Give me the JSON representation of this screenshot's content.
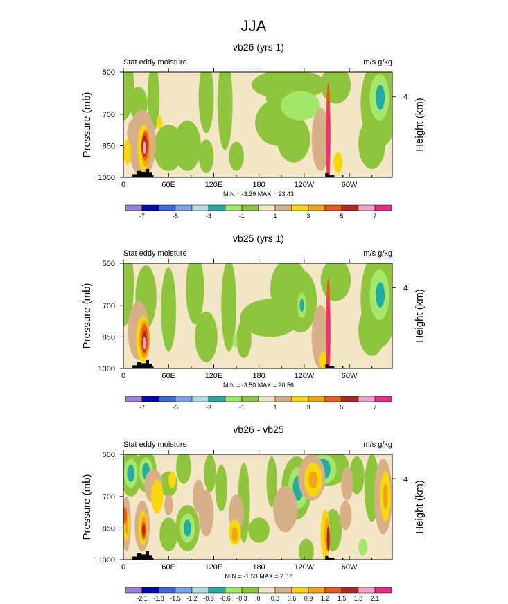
{
  "figure": {
    "title": "JJA"
  },
  "palettes": {
    "full": [
      "#9b7fd6",
      "#0606b4",
      "#3a66de",
      "#7aa4ee",
      "#b2dde2",
      "#23aca6",
      "#a3e86a",
      "#8fc53d",
      "#f3e6c6",
      "#d8b088",
      "#f6d80a",
      "#f3a417",
      "#ec5a17",
      "#b42626",
      "#f3a3c3",
      "#ec2a8c"
    ]
  },
  "chart_data": [
    {
      "type": "heatmap",
      "title": "vb26 (yrs 1)",
      "left_label": "Stat eddy moisture",
      "right_label": "m/s g/kg",
      "ylabel": "Pressure (mb)",
      "right_ylabel": "Height (km)",
      "x_ticks": [
        "0",
        "60E",
        "120E",
        "180",
        "120W",
        "60W"
      ],
      "x_tick_values": [
        0,
        60,
        120,
        180,
        240,
        300
      ],
      "x_range": [
        0,
        357
      ],
      "y_ticks": [
        "500",
        "700",
        "850",
        "1000"
      ],
      "y_tick_values": [
        500,
        700,
        850,
        1000
      ],
      "y_range": [
        500,
        1000
      ],
      "right_ticks": [
        "4"
      ],
      "right_tick_pressure": [
        616
      ],
      "minmax_text": "MIN =  -3.39  MAX =  23.43",
      "colorbar_labels": [
        "-7",
        "-5",
        "-3",
        "-1",
        "1",
        "3",
        "5",
        "7"
      ],
      "colorbar_label_boundaries": [
        1,
        3,
        5,
        7,
        9,
        11,
        13,
        15
      ],
      "background_level": 8,
      "blobs": [
        {
          "lon": 0,
          "p": 560,
          "rlon": 14,
          "rp": 170,
          "level": 7
        },
        {
          "lon": 20,
          "p": 650,
          "rlon": 12,
          "rp": 80,
          "level": 7
        },
        {
          "lon": 40,
          "p": 620,
          "rlon": 8,
          "rp": 160,
          "level": 7
        },
        {
          "lon": 60,
          "p": 860,
          "rlon": 20,
          "rp": 110,
          "level": 7
        },
        {
          "lon": 85,
          "p": 850,
          "rlon": 18,
          "rp": 120,
          "level": 7
        },
        {
          "lon": 110,
          "p": 620,
          "rlon": 10,
          "rp": 170,
          "level": 7
        },
        {
          "lon": 110,
          "p": 900,
          "rlon": 10,
          "rp": 80,
          "level": 7
        },
        {
          "lon": 135,
          "p": 650,
          "rlon": 10,
          "rp": 220,
          "level": 7
        },
        {
          "lon": 150,
          "p": 900,
          "rlon": 10,
          "rp": 70,
          "level": 7
        },
        {
          "lon": 200,
          "p": 560,
          "rlon": 12,
          "rp": 140,
          "level": 7
        },
        {
          "lon": 220,
          "p": 560,
          "rlon": 50,
          "rp": 70,
          "level": 7
        },
        {
          "lon": 205,
          "p": 740,
          "rlon": 30,
          "rp": 110,
          "level": 7
        },
        {
          "lon": 226,
          "p": 820,
          "rlon": 22,
          "rp": 110,
          "level": 7
        },
        {
          "lon": 235,
          "p": 660,
          "rlon": 26,
          "rp": 70,
          "level": 6
        },
        {
          "lon": 282,
          "p": 560,
          "rlon": 20,
          "rp": 90,
          "level": 7
        },
        {
          "lon": 330,
          "p": 840,
          "rlon": 18,
          "rp": 120,
          "level": 7
        },
        {
          "lon": 340,
          "p": 650,
          "rlon": 25,
          "rp": 210,
          "level": 7
        },
        {
          "lon": 340,
          "p": 620,
          "rlon": 13,
          "rp": 110,
          "level": 6
        },
        {
          "lon": 341,
          "p": 620,
          "rlon": 6,
          "rp": 60,
          "level": 5
        },
        {
          "lon": 15,
          "p": 790,
          "rlon": 10,
          "rp": 70,
          "level": 9
        },
        {
          "lon": 25,
          "p": 840,
          "rlon": 18,
          "rp": 160,
          "level": 9
        },
        {
          "lon": 262,
          "p": 820,
          "rlon": 12,
          "rp": 150,
          "level": 9
        },
        {
          "lon": 5,
          "p": 880,
          "rlon": 5,
          "rp": 60,
          "level": 10
        },
        {
          "lon": 48,
          "p": 740,
          "rlon": 4,
          "rp": 30,
          "level": 10
        },
        {
          "lon": 285,
          "p": 930,
          "rlon": 6,
          "rp": 50,
          "level": 10
        },
        {
          "lon": 27,
          "p": 860,
          "rlon": 8,
          "rp": 110,
          "level": 10
        },
        {
          "lon": 30,
          "p": 860,
          "rlon": 6,
          "rp": 90,
          "level": 11
        },
        {
          "lon": 29,
          "p": 850,
          "rlon": 5,
          "rp": 70,
          "level": 12
        },
        {
          "lon": 28,
          "p": 850,
          "rlon": 4,
          "rp": 50,
          "level": 13
        },
        {
          "lon": 28,
          "p": 860,
          "rlon": 2,
          "rp": 30,
          "level": 14
        },
        {
          "lon": 272,
          "p": 800,
          "rlon": 3,
          "rp": 250,
          "level": 12
        },
        {
          "lon": 272,
          "p": 830,
          "rlon": 2,
          "rp": 200,
          "level": 15
        }
      ]
    },
    {
      "type": "heatmap",
      "title": "vb25 (yrs 1)",
      "left_label": "Stat eddy moisture",
      "right_label": "m/s g/kg",
      "ylabel": "Pressure (mb)",
      "right_ylabel": "Height (km)",
      "x_ticks": [
        "0",
        "60E",
        "120E",
        "180",
        "120W",
        "60W"
      ],
      "x_tick_values": [
        0,
        60,
        120,
        180,
        240,
        300
      ],
      "x_range": [
        0,
        357
      ],
      "y_ticks": [
        "500",
        "700",
        "850",
        "1000"
      ],
      "y_tick_values": [
        500,
        700,
        850,
        1000
      ],
      "y_range": [
        500,
        1000
      ],
      "right_ticks": [
        "4"
      ],
      "right_tick_pressure": [
        616
      ],
      "minmax_text": "MIN =  -3.50  MAX =  20.56",
      "colorbar_labels": [
        "-7",
        "-5",
        "-3",
        "-1",
        "1",
        "3",
        "5",
        "7"
      ],
      "colorbar_label_boundaries": [
        1,
        3,
        5,
        7,
        9,
        11,
        13,
        15
      ],
      "background_level": 8,
      "blobs": [
        {
          "lon": 0,
          "p": 600,
          "rlon": 14,
          "rp": 200,
          "level": 7
        },
        {
          "lon": 30,
          "p": 660,
          "rlon": 14,
          "rp": 150,
          "level": 7
        },
        {
          "lon": 60,
          "p": 720,
          "rlon": 10,
          "rp": 200,
          "level": 7
        },
        {
          "lon": 95,
          "p": 620,
          "rlon": 12,
          "rp": 170,
          "level": 7
        },
        {
          "lon": 110,
          "p": 850,
          "rlon": 15,
          "rp": 120,
          "level": 7
        },
        {
          "lon": 140,
          "p": 700,
          "rlon": 10,
          "rp": 220,
          "level": 7
        },
        {
          "lon": 160,
          "p": 860,
          "rlon": 10,
          "rp": 90,
          "level": 7
        },
        {
          "lon": 220,
          "p": 620,
          "rlon": 25,
          "rp": 140,
          "level": 7
        },
        {
          "lon": 195,
          "p": 760,
          "rlon": 40,
          "rp": 90,
          "level": 7
        },
        {
          "lon": 235,
          "p": 680,
          "rlon": 22,
          "rp": 150,
          "level": 7
        },
        {
          "lon": 282,
          "p": 580,
          "rlon": 20,
          "rp": 100,
          "level": 7
        },
        {
          "lon": 330,
          "p": 820,
          "rlon": 18,
          "rp": 120,
          "level": 7
        },
        {
          "lon": 340,
          "p": 670,
          "rlon": 25,
          "rp": 230,
          "level": 7
        },
        {
          "lon": 237,
          "p": 700,
          "rlon": 6,
          "rp": 60,
          "level": 6
        },
        {
          "lon": 340,
          "p": 650,
          "rlon": 13,
          "rp": 120,
          "level": 6
        },
        {
          "lon": 341,
          "p": 650,
          "rlon": 6,
          "rp": 60,
          "level": 5
        },
        {
          "lon": 237,
          "p": 700,
          "rlon": 3,
          "rp": 30,
          "level": 5
        },
        {
          "lon": 148,
          "p": 870,
          "rlon": 3,
          "rp": 30,
          "level": 6
        },
        {
          "lon": 20,
          "p": 820,
          "rlon": 14,
          "rp": 140,
          "level": 9
        },
        {
          "lon": 262,
          "p": 850,
          "rlon": 12,
          "rp": 150,
          "level": 9
        },
        {
          "lon": 265,
          "p": 960,
          "rlon": 5,
          "rp": 40,
          "level": 10
        },
        {
          "lon": 26,
          "p": 860,
          "rlon": 9,
          "rp": 110,
          "level": 10
        },
        {
          "lon": 28,
          "p": 860,
          "rlon": 7,
          "rp": 90,
          "level": 11
        },
        {
          "lon": 28,
          "p": 860,
          "rlon": 5,
          "rp": 70,
          "level": 12
        },
        {
          "lon": 28,
          "p": 870,
          "rlon": 3,
          "rp": 50,
          "level": 13
        },
        {
          "lon": 28,
          "p": 880,
          "rlon": 2,
          "rp": 30,
          "level": 14
        },
        {
          "lon": 272,
          "p": 820,
          "rlon": 3,
          "rp": 250,
          "level": 12
        },
        {
          "lon": 272,
          "p": 850,
          "rlon": 2,
          "rp": 200,
          "level": 15
        }
      ]
    },
    {
      "type": "heatmap",
      "title": "vb26 - vb25",
      "left_label": "Stat eddy moisture",
      "right_label": "m/s g/kg",
      "ylabel": "Pressure (mb)",
      "right_ylabel": "Height (km)",
      "x_ticks": [
        "0",
        "60E",
        "120E",
        "180",
        "120W",
        "60W"
      ],
      "x_tick_values": [
        0,
        60,
        120,
        180,
        240,
        300
      ],
      "x_range": [
        0,
        357
      ],
      "y_ticks": [
        "500",
        "700",
        "850",
        "1000"
      ],
      "y_tick_values": [
        500,
        700,
        850,
        1000
      ],
      "y_range": [
        500,
        1000
      ],
      "right_ticks": [
        "4"
      ],
      "right_tick_pressure": [
        616
      ],
      "minmax_text": "MIN =  -1.53  MAX =  2.87",
      "colorbar_labels": [
        "-2.1",
        "-1.8",
        "-1.5",
        "-1.2",
        "-0.9",
        "-0.6",
        "-0.3",
        "0",
        "0.3",
        "0.6",
        "0.9",
        "1.2",
        "1.5",
        "1.8",
        "2.1"
      ],
      "colorbar_label_boundaries": [
        1,
        2,
        3,
        4,
        5,
        6,
        7,
        8,
        9,
        10,
        11,
        12,
        13,
        14,
        15
      ],
      "background_level": 8,
      "blobs": [
        {
          "lon": 10,
          "p": 590,
          "rlon": 14,
          "rp": 110,
          "level": 7
        },
        {
          "lon": 30,
          "p": 580,
          "rlon": 14,
          "rp": 100,
          "level": 7
        },
        {
          "lon": 10,
          "p": 590,
          "rlon": 9,
          "rp": 70,
          "level": 6
        },
        {
          "lon": 30,
          "p": 580,
          "rlon": 9,
          "rp": 65,
          "level": 6
        },
        {
          "lon": 10,
          "p": 590,
          "rlon": 5,
          "rp": 40,
          "level": 5
        },
        {
          "lon": 30,
          "p": 580,
          "rlon": 5,
          "rp": 40,
          "level": 5
        },
        {
          "lon": 60,
          "p": 640,
          "rlon": 12,
          "rp": 60,
          "level": 7
        },
        {
          "lon": 60,
          "p": 880,
          "rlon": 12,
          "rp": 80,
          "level": 7
        },
        {
          "lon": 80,
          "p": 560,
          "rlon": 10,
          "rp": 80,
          "level": 7
        },
        {
          "lon": 85,
          "p": 850,
          "rlon": 16,
          "rp": 110,
          "level": 7
        },
        {
          "lon": 85,
          "p": 850,
          "rlon": 10,
          "rp": 70,
          "level": 6
        },
        {
          "lon": 85,
          "p": 850,
          "rlon": 5,
          "rp": 40,
          "level": 5
        },
        {
          "lon": 115,
          "p": 590,
          "rlon": 8,
          "rp": 90,
          "level": 7
        },
        {
          "lon": 130,
          "p": 660,
          "rlon": 8,
          "rp": 110,
          "level": 7
        },
        {
          "lon": 160,
          "p": 730,
          "rlon": 8,
          "rp": 190,
          "level": 7
        },
        {
          "lon": 180,
          "p": 860,
          "rlon": 14,
          "rp": 60,
          "level": 7
        },
        {
          "lon": 197,
          "p": 630,
          "rlon": 7,
          "rp": 120,
          "level": 7
        },
        {
          "lon": 230,
          "p": 660,
          "rlon": 20,
          "rp": 150,
          "level": 7
        },
        {
          "lon": 232,
          "p": 660,
          "rlon": 13,
          "rp": 100,
          "level": 6
        },
        {
          "lon": 232,
          "p": 660,
          "rlon": 7,
          "rp": 60,
          "level": 5
        },
        {
          "lon": 243,
          "p": 960,
          "rlon": 10,
          "rp": 60,
          "level": 7
        },
        {
          "lon": 270,
          "p": 560,
          "rlon": 30,
          "rp": 90,
          "level": 7
        },
        {
          "lon": 265,
          "p": 570,
          "rlon": 18,
          "rp": 70,
          "level": 6
        },
        {
          "lon": 265,
          "p": 570,
          "rlon": 10,
          "rp": 50,
          "level": 5
        },
        {
          "lon": 278,
          "p": 860,
          "rlon": 12,
          "rp": 100,
          "level": 7
        },
        {
          "lon": 310,
          "p": 600,
          "rlon": 10,
          "rp": 90,
          "level": 7
        },
        {
          "lon": 330,
          "p": 660,
          "rlon": 10,
          "rp": 160,
          "level": 7
        },
        {
          "lon": 318,
          "p": 940,
          "rlon": 6,
          "rp": 40,
          "level": 6
        },
        {
          "lon": 40,
          "p": 650,
          "rlon": 12,
          "rp": 80,
          "level": 9
        },
        {
          "lon": 45,
          "p": 700,
          "rlon": 8,
          "rp": 80,
          "level": 10
        },
        {
          "lon": 100,
          "p": 700,
          "rlon": 8,
          "rp": 80,
          "level": 9
        },
        {
          "lon": 110,
          "p": 780,
          "rlon": 10,
          "rp": 110,
          "level": 9
        },
        {
          "lon": 150,
          "p": 780,
          "rlon": 10,
          "rp": 90,
          "level": 9
        },
        {
          "lon": 148,
          "p": 870,
          "rlon": 8,
          "rp": 60,
          "level": 10
        },
        {
          "lon": 148,
          "p": 880,
          "rlon": 4,
          "rp": 35,
          "level": 11
        },
        {
          "lon": 60,
          "p": 740,
          "rlon": 6,
          "rp": 50,
          "level": 9
        },
        {
          "lon": 65,
          "p": 620,
          "rlon": 5,
          "rp": 40,
          "level": 10
        },
        {
          "lon": 215,
          "p": 760,
          "rlon": 16,
          "rp": 110,
          "level": 9
        },
        {
          "lon": 250,
          "p": 610,
          "rlon": 18,
          "rp": 110,
          "level": 9
        },
        {
          "lon": 252,
          "p": 620,
          "rlon": 12,
          "rp": 80,
          "level": 10
        },
        {
          "lon": 252,
          "p": 620,
          "rlon": 6,
          "rp": 40,
          "level": 11
        },
        {
          "lon": 297,
          "p": 640,
          "rlon": 8,
          "rp": 80,
          "level": 9
        },
        {
          "lon": 295,
          "p": 790,
          "rlon": 8,
          "rp": 70,
          "level": 9
        },
        {
          "lon": 345,
          "p": 700,
          "rlon": 12,
          "rp": 180,
          "level": 9
        },
        {
          "lon": 348,
          "p": 700,
          "rlon": 7,
          "rp": 120,
          "level": 10
        },
        {
          "lon": 348,
          "p": 700,
          "rlon": 3,
          "rp": 60,
          "level": 11
        },
        {
          "lon": 4,
          "p": 830,
          "rlon": 6,
          "rp": 130,
          "level": 9
        },
        {
          "lon": 4,
          "p": 840,
          "rlon": 4,
          "rp": 70,
          "level": 10
        },
        {
          "lon": 4,
          "p": 840,
          "rlon": 2,
          "rp": 40,
          "level": 11
        },
        {
          "lon": 2,
          "p": 790,
          "rlon": 3,
          "rp": 40,
          "level": 12
        },
        {
          "lon": 25,
          "p": 840,
          "rlon": 10,
          "rp": 120,
          "level": 9
        },
        {
          "lon": 26,
          "p": 850,
          "rlon": 6,
          "rp": 80,
          "level": 10
        },
        {
          "lon": 27,
          "p": 850,
          "rlon": 4,
          "rp": 60,
          "level": 11
        },
        {
          "lon": 27,
          "p": 860,
          "rlon": 3,
          "rp": 40,
          "level": 12
        },
        {
          "lon": 27,
          "p": 860,
          "rlon": 2,
          "rp": 25,
          "level": 13
        },
        {
          "lon": 268,
          "p": 880,
          "rlon": 6,
          "rp": 120,
          "level": 10
        },
        {
          "lon": 270,
          "p": 880,
          "rlon": 3,
          "rp": 80,
          "level": 11
        },
        {
          "lon": 272,
          "p": 900,
          "rlon": 2,
          "rp": 60,
          "level": 13
        }
      ]
    }
  ]
}
